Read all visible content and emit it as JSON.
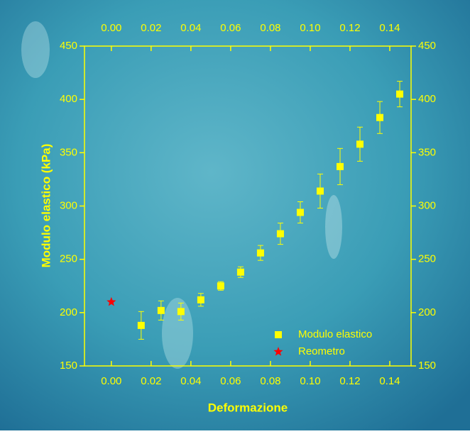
{
  "chart_data": {
    "type": "scatter",
    "x_label": "Deformazione",
    "y_label": "Modulo elastico (kPa)",
    "xlim": [
      -0.0135,
      0.1507
    ],
    "ylim": [
      150,
      450
    ],
    "xticks": [
      {
        "value": 0,
        "label": "0.00"
      },
      {
        "value": 0.02,
        "label": "0.02"
      },
      {
        "value": 0.04,
        "label": "0.04"
      },
      {
        "value": 0.06,
        "label": "0.06"
      },
      {
        "value": 0.08,
        "label": "0.08"
      },
      {
        "value": 0.1,
        "label": "0.10"
      },
      {
        "value": 0.12,
        "label": "0.12"
      },
      {
        "value": 0.14,
        "label": "0.14"
      }
    ],
    "yticks": [
      150,
      200,
      250,
      300,
      350,
      400,
      450
    ],
    "axis_color": "#ffff00",
    "legend_position": "lower right",
    "series": [
      {
        "name": "Modulo elastico",
        "color": "#ffff00",
        "marker": "square",
        "x": [
          0.015,
          0.025,
          0.035,
          0.045,
          0.055,
          0.065,
          0.075,
          0.085,
          0.095,
          0.105,
          0.115,
          0.125,
          0.135,
          0.145
        ],
        "values": [
          188,
          202,
          201,
          212,
          225,
          238,
          256,
          274,
          294,
          314,
          337,
          358,
          383,
          405
        ],
        "errors": [
          13,
          9,
          8,
          6,
          4,
          5,
          7,
          10,
          10,
          16,
          17,
          16,
          15,
          12
        ]
      },
      {
        "name": "Reometro",
        "color": "#ff0000",
        "marker": "star",
        "x": [
          0
        ],
        "values": [
          210
        ]
      }
    ]
  }
}
